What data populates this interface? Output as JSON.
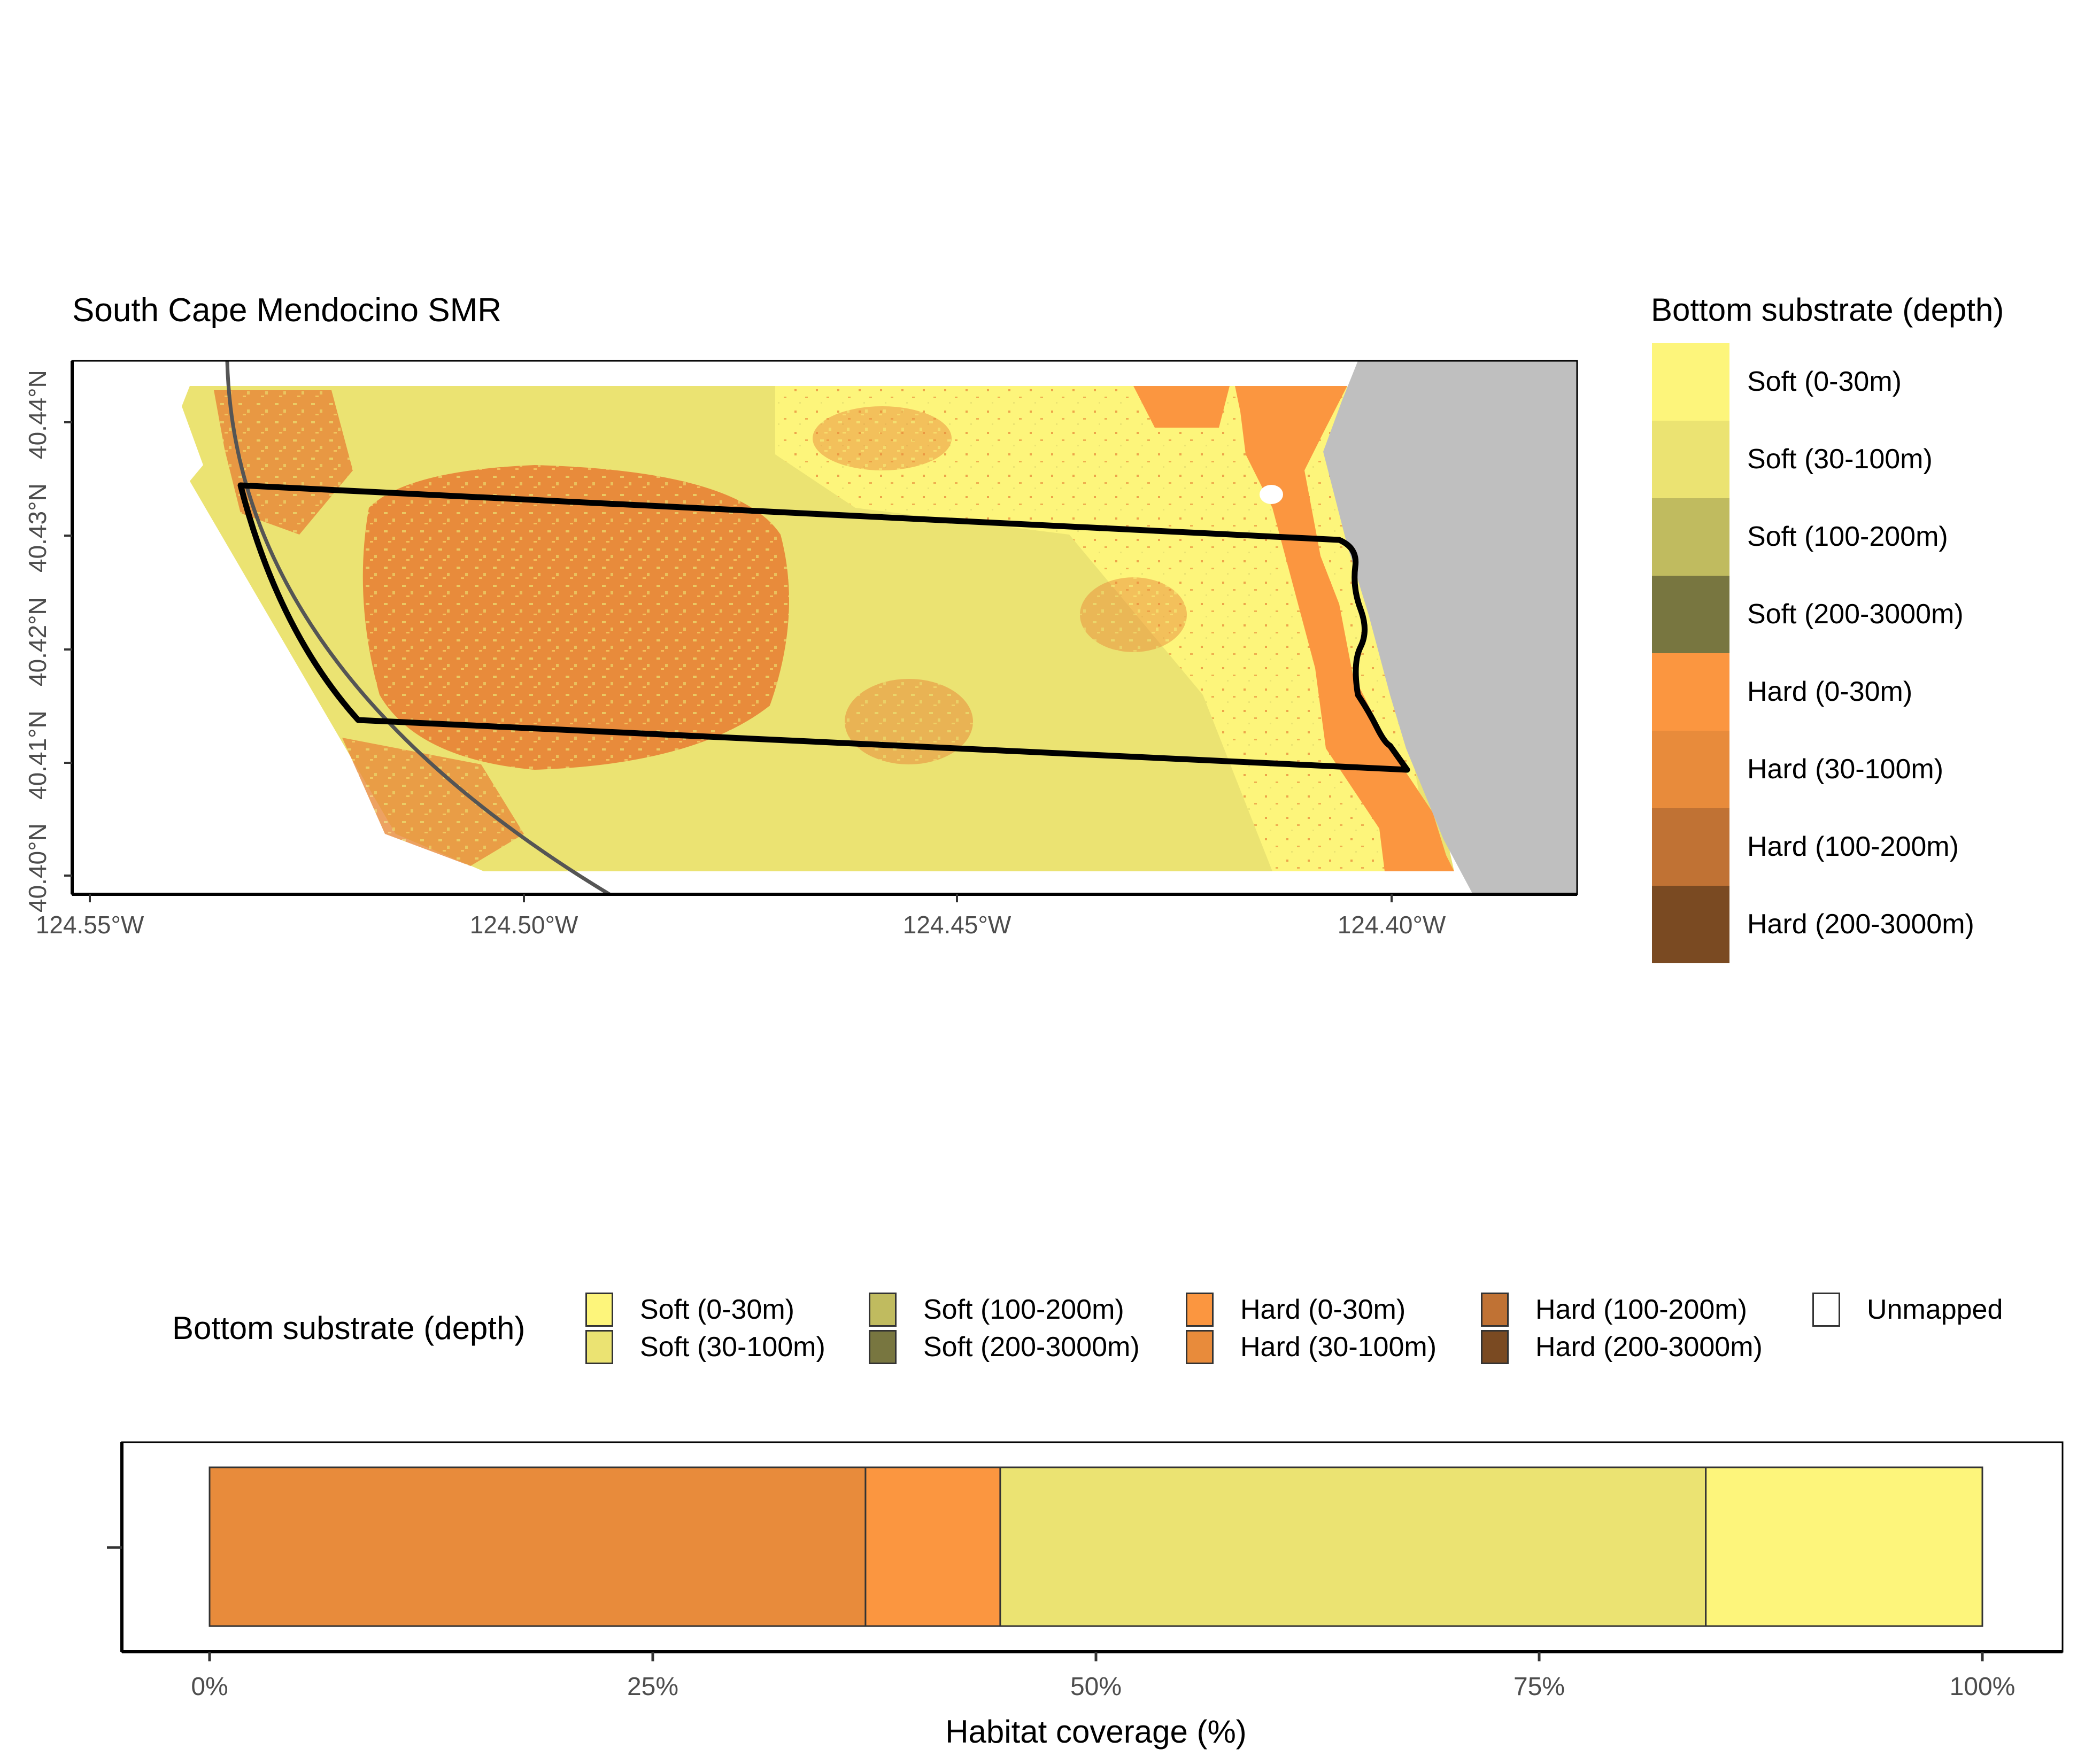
{
  "map": {
    "title": "South Cape Mendocino SMR",
    "x_ticks": [
      "124.55°W",
      "124.50°W",
      "124.45°W",
      "124.40°W"
    ],
    "y_ticks": [
      "40.44°N",
      "40.43°N",
      "40.42°N",
      "40.41°N",
      "40.40°N"
    ],
    "land_color": "#bfbfbf"
  },
  "legend": {
    "title": "Bottom substrate (depth)",
    "items": [
      {
        "label": "Soft (0-30m)",
        "color": "#fdf57b"
      },
      {
        "label": "Soft (30-100m)",
        "color": "#ebe372"
      },
      {
        "label": "Soft (100-200m)",
        "color": "#c0bb5f"
      },
      {
        "label": "Soft (200-3000m)",
        "color": "#787640"
      },
      {
        "label": "Hard (0-30m)",
        "color": "#fb9640"
      },
      {
        "label": "Hard (30-100m)",
        "color": "#e88b3b"
      },
      {
        "label": "Hard (100-200m)",
        "color": "#c07234"
      },
      {
        "label": "Hard (200-3000m)",
        "color": "#7a4a22"
      }
    ]
  },
  "habitat_legend": {
    "title": "Bottom substrate (depth)",
    "items": [
      {
        "label": "Soft (0-30m)",
        "color": "#fdf57b"
      },
      {
        "label": "Soft (30-100m)",
        "color": "#ebe372"
      },
      {
        "label": "Soft (100-200m)",
        "color": "#c0bb5f"
      },
      {
        "label": "Soft (200-3000m)",
        "color": "#787640"
      },
      {
        "label": "Hard (0-30m)",
        "color": "#fb9640"
      },
      {
        "label": "Hard (30-100m)",
        "color": "#e88b3b"
      },
      {
        "label": "Hard (100-200m)",
        "color": "#c07234"
      },
      {
        "label": "Hard (200-3000m)",
        "color": "#7a4a22"
      },
      {
        "label": "Unmapped",
        "color": "#ffffff"
      }
    ]
  },
  "chart_data": {
    "type": "bar",
    "orientation": "horizontal-stacked",
    "xlabel": "Habitat coverage (%)",
    "ylabel": "",
    "xlim": [
      0,
      100
    ],
    "x_ticks": [
      "0%",
      "25%",
      "50%",
      "75%",
      "100%"
    ],
    "series": [
      {
        "name": "Hard (30-100m)",
        "value": 37.0,
        "color": "#e88b3b"
      },
      {
        "name": "Hard (0-30m)",
        "value": 7.6,
        "color": "#fb9640"
      },
      {
        "name": "Soft (30-100m)",
        "value": 39.8,
        "color": "#ebe372"
      },
      {
        "name": "Soft (0-30m)",
        "value": 15.6,
        "color": "#fdf57b"
      }
    ]
  }
}
